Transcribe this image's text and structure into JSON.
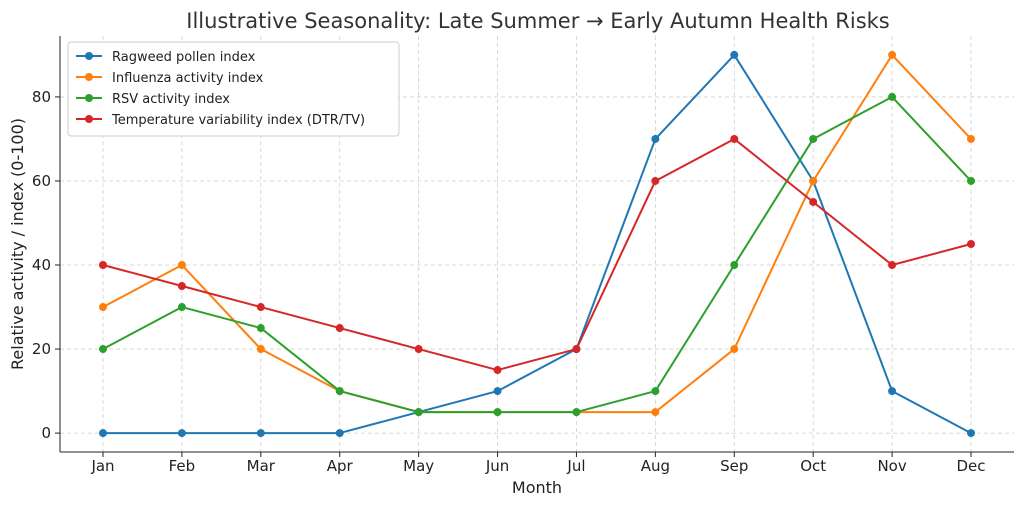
{
  "chart_data": {
    "type": "line",
    "title": "Illustrative Seasonality: Late Summer → Early Autumn Health Risks",
    "xlabel": "Month",
    "ylabel": "Relative activity / index (0-100)",
    "categories": [
      "Jan",
      "Feb",
      "Mar",
      "Apr",
      "May",
      "Jun",
      "Jul",
      "Aug",
      "Sep",
      "Oct",
      "Nov",
      "Dec"
    ],
    "ylim": [
      -4.5,
      94.5
    ],
    "yticks": [
      0,
      20,
      40,
      60,
      80
    ],
    "grid": true,
    "legend_position": "top-left",
    "series": [
      {
        "name": "Ragweed pollen index",
        "color": "#1f77b4",
        "values": [
          0,
          0,
          0,
          0,
          5,
          10,
          20,
          70,
          90,
          60,
          10,
          0
        ]
      },
      {
        "name": "Influenza activity index",
        "color": "#ff7f0e",
        "values": [
          30,
          40,
          20,
          10,
          5,
          5,
          5,
          5,
          20,
          60,
          90,
          70
        ]
      },
      {
        "name": "RSV activity index",
        "color": "#2ca02c",
        "values": [
          20,
          30,
          25,
          10,
          5,
          5,
          5,
          10,
          40,
          70,
          80,
          60
        ]
      },
      {
        "name": "Temperature variability index (DTR/TV)",
        "color": "#d62728",
        "values": [
          40,
          35,
          30,
          25,
          20,
          15,
          20,
          60,
          70,
          55,
          40,
          45
        ]
      }
    ]
  }
}
